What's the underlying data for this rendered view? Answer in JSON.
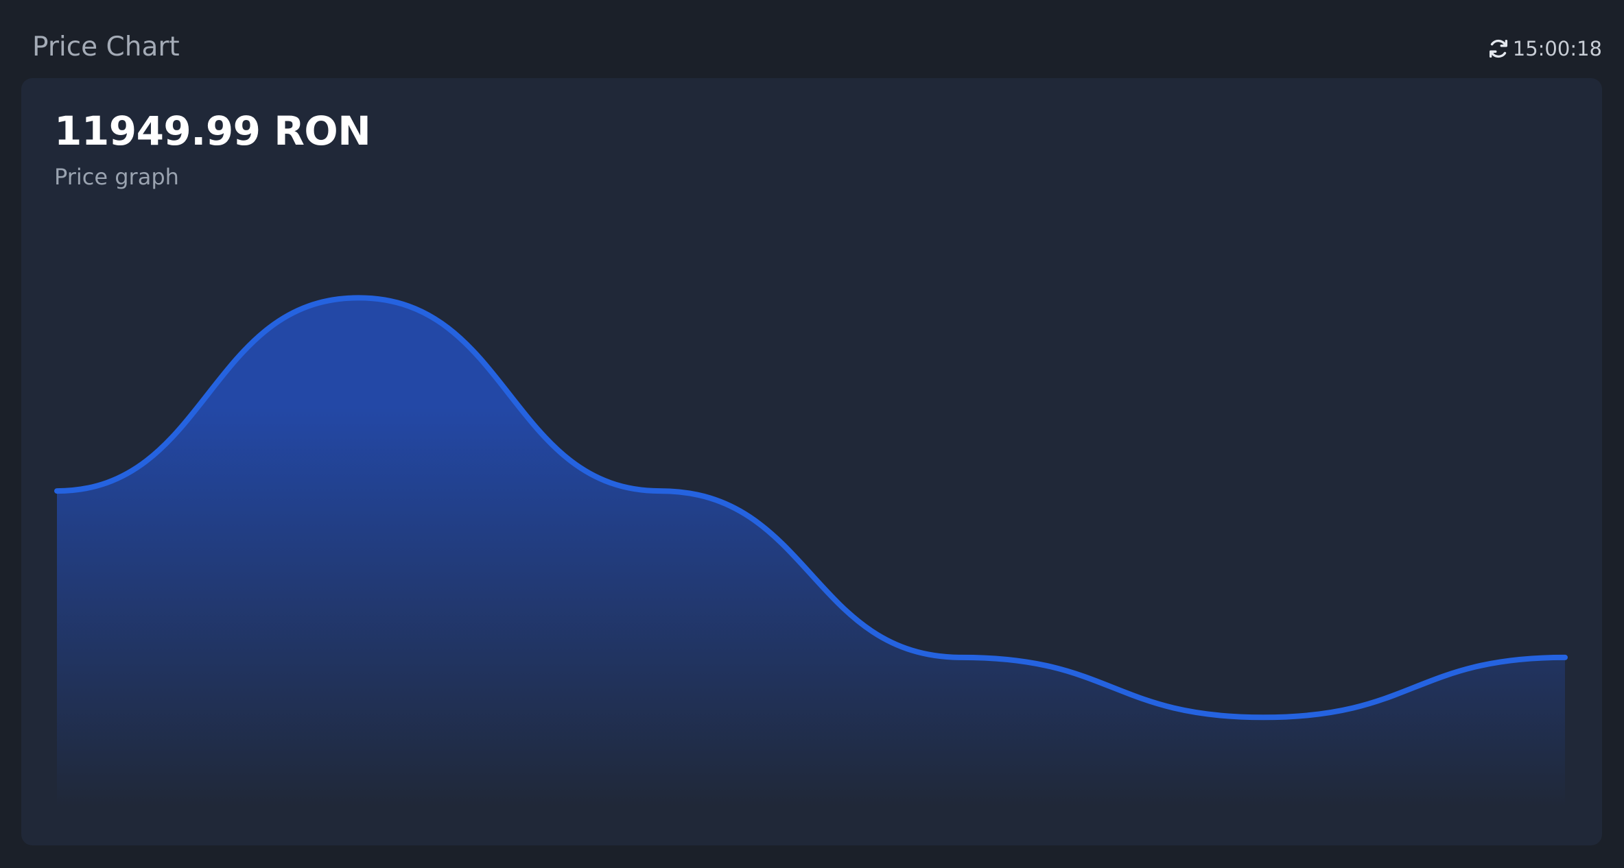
{
  "header": {
    "title": "Price Chart",
    "refresh_icon": "refresh-icon",
    "time": "15:00:18"
  },
  "card": {
    "price": "11949.99 RON",
    "subtitle": "Price graph"
  },
  "colors": {
    "background": "#1b2029",
    "card": "#202838",
    "line": "#2563e0",
    "fill_top": "#2348a6",
    "fill_bottom": "#202838"
  },
  "chart_data": {
    "type": "area",
    "title": "",
    "xlabel": "",
    "ylabel": "",
    "grid": false,
    "legend": "none",
    "x": [
      0,
      1,
      2,
      3,
      4,
      5
    ],
    "values": [
      4.2,
      7.1,
      4.2,
      1.7,
      0.8,
      1.7
    ],
    "ylim": [
      0,
      8
    ]
  }
}
